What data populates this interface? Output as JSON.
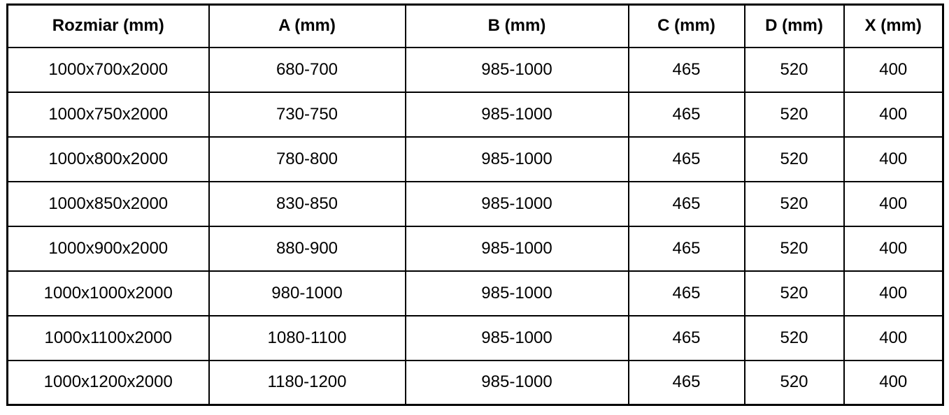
{
  "table": {
    "headers": [
      "Rozmiar (mm)",
      "A (mm)",
      "B (mm)",
      "C (mm)",
      "D (mm)",
      "X (mm)"
    ],
    "rows": [
      [
        "1000x700x2000",
        "680-700",
        "985-1000",
        "465",
        "520",
        "400"
      ],
      [
        "1000x750x2000",
        "730-750",
        "985-1000",
        "465",
        "520",
        "400"
      ],
      [
        "1000x800x2000",
        "780-800",
        "985-1000",
        "465",
        "520",
        "400"
      ],
      [
        "1000x850x2000",
        "830-850",
        "985-1000",
        "465",
        "520",
        "400"
      ],
      [
        "1000x900x2000",
        "880-900",
        "985-1000",
        "465",
        "520",
        "400"
      ],
      [
        "1000x1000x2000",
        "980-1000",
        "985-1000",
        "465",
        "520",
        "400"
      ],
      [
        "1000x1100x2000",
        "1080-1100",
        "985-1000",
        "465",
        "520",
        "400"
      ],
      [
        "1000x1200x2000",
        "1180-1200",
        "985-1000",
        "465",
        "520",
        "400"
      ]
    ],
    "border_color": "#000000",
    "text_color": "#000000",
    "background_color": "#ffffff"
  }
}
